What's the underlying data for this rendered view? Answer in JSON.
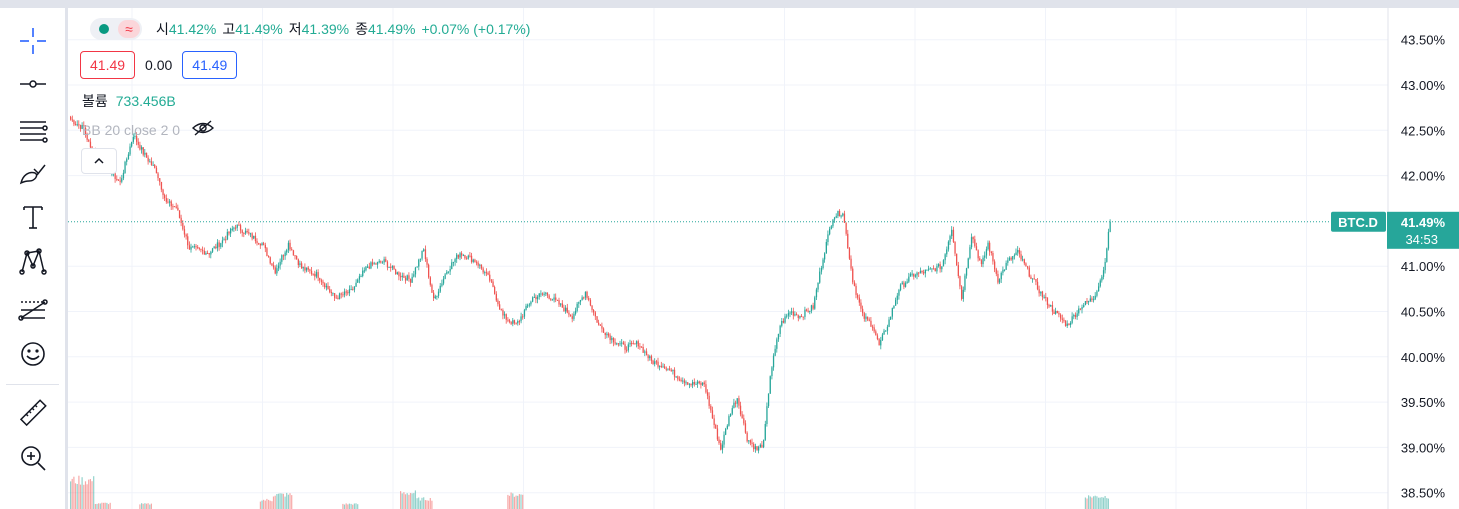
{
  "toolbar": {
    "tools": [
      {
        "name": "crosshair-icon"
      },
      {
        "name": "horizontal-line-icon"
      },
      {
        "name": "parallel-channel-icon"
      },
      {
        "name": "brush-icon"
      },
      {
        "name": "text-icon"
      },
      {
        "name": "pattern-icon"
      },
      {
        "name": "fib-retracement-icon"
      },
      {
        "name": "smiley-icon"
      }
    ],
    "bottom_tools": [
      {
        "name": "ruler-icon"
      },
      {
        "name": "zoom-in-icon"
      }
    ]
  },
  "legend": {
    "ohlc": {
      "open_label": "시",
      "open": "41.42%",
      "high_label": "고",
      "high": "41.49%",
      "low_label": "저",
      "low": "41.39%",
      "close_label": "종",
      "close": "41.49%",
      "change": "+0.07% (+0.17%)"
    },
    "bid": "41.49",
    "spread": "0.00",
    "ask": "41.49",
    "volume_label": "볼륨",
    "volume_value": "733.456B",
    "indicator": "BB 20 close 2 0",
    "colors": {
      "up": "#26a69a",
      "down": "#ef5350"
    }
  },
  "chart_data": {
    "type": "candlestick",
    "symbol": "BTC.D",
    "current": {
      "value": 41.49,
      "label": "41.49%",
      "countdown": "34:53"
    },
    "y_ticks": [
      {
        "value": 43.5,
        "label": "43.50%"
      },
      {
        "value": 43.0,
        "label": "43.00%"
      },
      {
        "value": 42.5,
        "label": "42.50%"
      },
      {
        "value": 42.0,
        "label": "42.00%"
      },
      {
        "value": 41.0,
        "label": "41.00%"
      },
      {
        "value": 40.5,
        "label": "40.50%"
      },
      {
        "value": 40.0,
        "label": "40.00%"
      },
      {
        "value": 39.5,
        "label": "39.50%"
      },
      {
        "value": 39.0,
        "label": "39.00%"
      },
      {
        "value": 38.5,
        "label": "38.50%"
      }
    ],
    "ylim": [
      38.32,
      43.85
    ],
    "grid": true,
    "anchors": [
      [
        0,
        42.62
      ],
      [
        8,
        42.52
      ],
      [
        12,
        42.3
      ],
      [
        18,
        42.2
      ],
      [
        24,
        42.05
      ],
      [
        30,
        41.92
      ],
      [
        38,
        42.45
      ],
      [
        44,
        42.25
      ],
      [
        52,
        42.05
      ],
      [
        58,
        41.7
      ],
      [
        64,
        41.65
      ],
      [
        72,
        41.2
      ],
      [
        84,
        41.15
      ],
      [
        92,
        41.28
      ],
      [
        100,
        41.45
      ],
      [
        108,
        41.35
      ],
      [
        116,
        41.25
      ],
      [
        124,
        40.95
      ],
      [
        132,
        41.25
      ],
      [
        140,
        40.98
      ],
      [
        150,
        40.9
      ],
      [
        160,
        40.65
      ],
      [
        170,
        40.72
      ],
      [
        180,
        41.0
      ],
      [
        190,
        41.05
      ],
      [
        198,
        40.92
      ],
      [
        206,
        40.85
      ],
      [
        214,
        41.18
      ],
      [
        220,
        40.62
      ],
      [
        228,
        40.95
      ],
      [
        236,
        41.15
      ],
      [
        246,
        41.05
      ],
      [
        254,
        40.85
      ],
      [
        262,
        40.45
      ],
      [
        270,
        40.35
      ],
      [
        280,
        40.65
      ],
      [
        288,
        40.7
      ],
      [
        296,
        40.58
      ],
      [
        304,
        40.45
      ],
      [
        312,
        40.72
      ],
      [
        320,
        40.35
      ],
      [
        328,
        40.2
      ],
      [
        336,
        40.1
      ],
      [
        344,
        40.15
      ],
      [
        352,
        39.95
      ],
      [
        360,
        39.9
      ],
      [
        368,
        39.78
      ],
      [
        376,
        39.7
      ],
      [
        384,
        39.7
      ],
      [
        390,
        39.25
      ],
      [
        394,
        38.98
      ],
      [
        400,
        39.4
      ],
      [
        404,
        39.55
      ],
      [
        410,
        39.1
      ],
      [
        416,
        38.97
      ],
      [
        420,
        39.05
      ],
      [
        424,
        39.8
      ],
      [
        430,
        40.35
      ],
      [
        436,
        40.5
      ],
      [
        442,
        40.45
      ],
      [
        450,
        40.55
      ],
      [
        456,
        41.1
      ],
      [
        462,
        41.55
      ],
      [
        468,
        41.6
      ],
      [
        474,
        40.85
      ],
      [
        480,
        40.45
      ],
      [
        486,
        40.35
      ],
      [
        490,
        40.12
      ],
      [
        496,
        40.4
      ],
      [
        502,
        40.75
      ],
      [
        510,
        40.9
      ],
      [
        520,
        40.95
      ],
      [
        528,
        41.0
      ],
      [
        534,
        41.42
      ],
      [
        540,
        40.65
      ],
      [
        546,
        41.35
      ],
      [
        552,
        41.0
      ],
      [
        556,
        41.25
      ],
      [
        562,
        40.85
      ],
      [
        568,
        41.05
      ],
      [
        574,
        41.15
      ],
      [
        580,
        40.95
      ],
      [
        588,
        40.7
      ],
      [
        596,
        40.5
      ],
      [
        604,
        40.35
      ],
      [
        612,
        40.55
      ],
      [
        620,
        40.65
      ],
      [
        626,
        40.95
      ],
      [
        630,
        41.48
      ]
    ],
    "volume": [
      {
        "start": 0,
        "end": 15,
        "height": 0.8
      },
      {
        "start": 15,
        "end": 25,
        "height": 0.16
      },
      {
        "start": 42,
        "end": 50,
        "height": 0.14
      },
      {
        "start": 115,
        "end": 123,
        "height": 0.25
      },
      {
        "start": 123,
        "end": 135,
        "height": 0.4
      },
      {
        "start": 165,
        "end": 175,
        "height": 0.14
      },
      {
        "start": 200,
        "end": 210,
        "height": 0.45
      },
      {
        "start": 210,
        "end": 220,
        "height": 0.28
      },
      {
        "start": 265,
        "end": 275,
        "height": 0.4
      },
      {
        "start": 615,
        "end": 630,
        "height": 0.35
      }
    ]
  }
}
